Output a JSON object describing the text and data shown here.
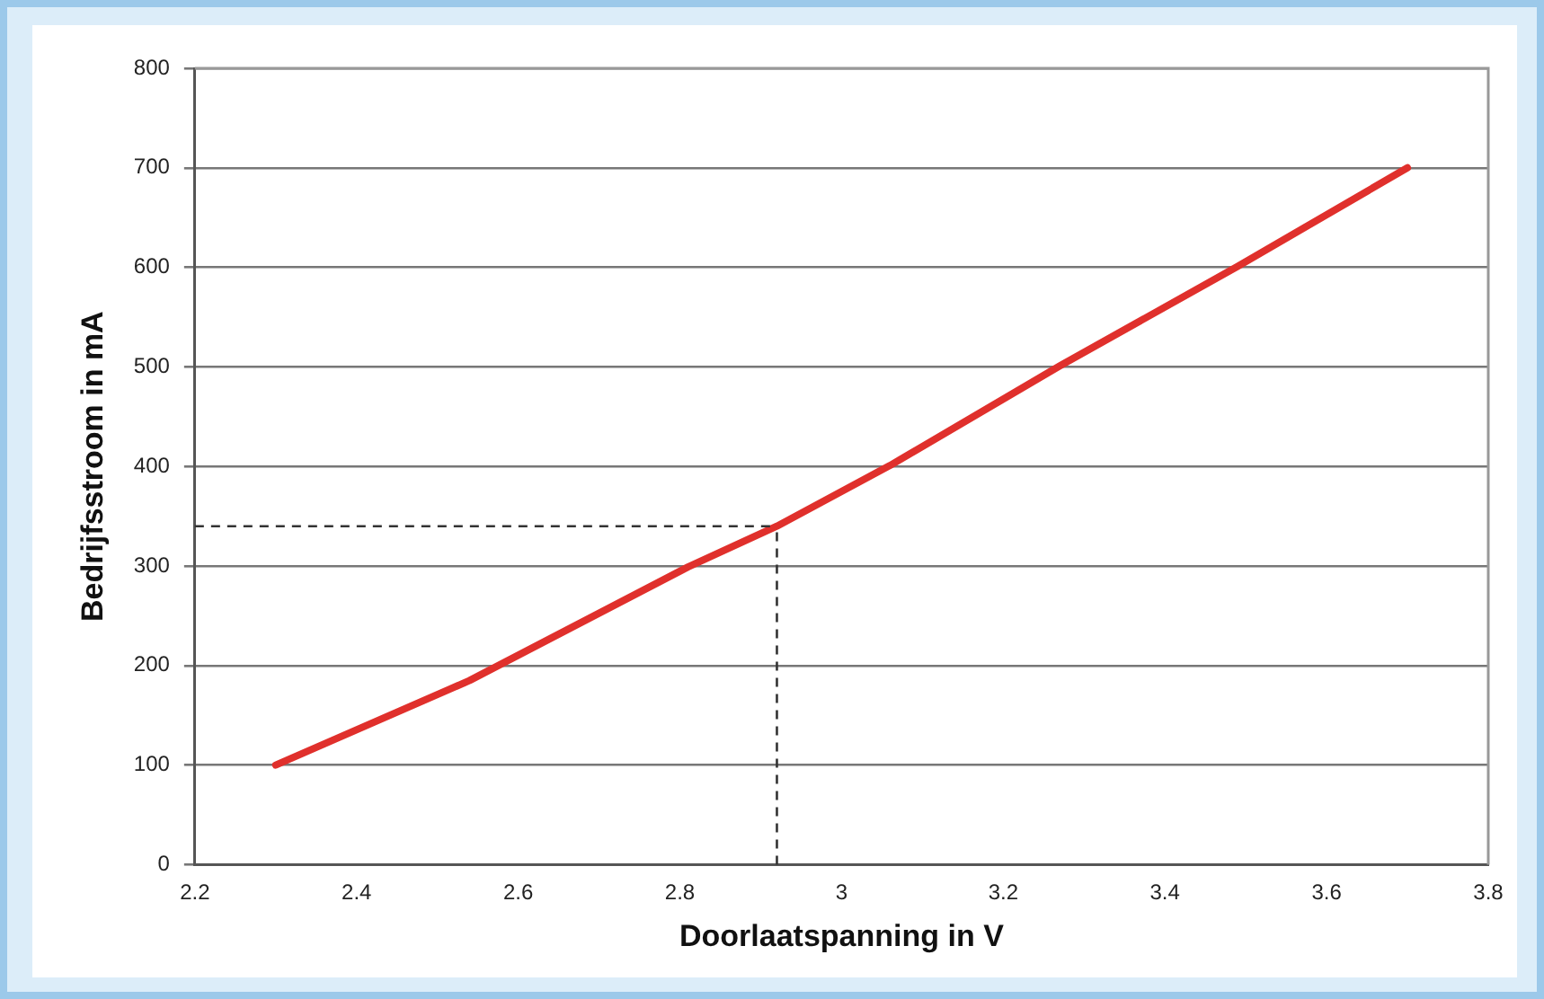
{
  "chart_data": {
    "type": "line",
    "xlabel": "Doorlaatspanning in V",
    "ylabel": "Bedrijfsstroom in mA",
    "x": [
      2.3,
      2.54,
      2.81,
      2.92,
      3.06,
      3.27,
      3.49,
      3.7
    ],
    "series": [
      {
        "color": "#e0302c",
        "values": [
          100,
          185,
          299,
          340,
          401,
          501,
          601,
          700
        ]
      }
    ],
    "xlim": [
      2.2,
      3.8
    ],
    "xticks": [
      2.2,
      2.4,
      2.6,
      2.8,
      3,
      3.2,
      3.4,
      3.6,
      3.8
    ],
    "ylim": [
      0,
      800
    ],
    "yticks": [
      0,
      100,
      200,
      300,
      400,
      500,
      600,
      700,
      800
    ],
    "grid": "y",
    "legend": false,
    "marker": "none",
    "line_style": "solid",
    "ref_lines": [
      {
        "axis": "x",
        "value": 2.92,
        "line_style": "dashed",
        "color": "#333333"
      },
      {
        "axis": "y",
        "value": 340,
        "line_style": "dashed",
        "color": "#333333"
      }
    ]
  }
}
